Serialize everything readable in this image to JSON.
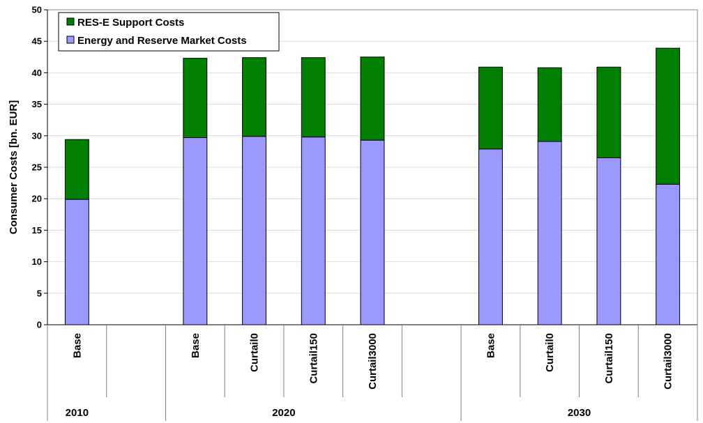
{
  "chart_data": {
    "type": "bar",
    "stacked": true,
    "ylabel": "Consumer Costs [bn. EUR]",
    "ylim": [
      0,
      50
    ],
    "yticks": [
      0,
      5,
      10,
      15,
      20,
      25,
      30,
      35,
      40,
      45,
      50
    ],
    "grid": true,
    "legend_position": "top-left",
    "groups": [
      {
        "label": "2010",
        "categories": [
          "Base",
          ""
        ]
      },
      {
        "label": "2020",
        "categories": [
          "Base",
          "Curtail0",
          "Curtail150",
          "Curtail3000",
          ""
        ]
      },
      {
        "label": "2030",
        "categories": [
          "Base",
          "Curtail0",
          "Curtail150",
          "Curtail3000"
        ]
      }
    ],
    "categories": [
      "Base",
      "",
      "Base",
      "Curtail0",
      "Curtail150",
      "Curtail3000",
      "",
      "Base",
      "Curtail0",
      "Curtail150",
      "Curtail3000"
    ],
    "series": [
      {
        "name": "Energy and Reserve Market Costs",
        "color": "#9999ff",
        "values": [
          19.9,
          null,
          29.7,
          29.9,
          29.8,
          29.3,
          null,
          27.9,
          29.1,
          26.5,
          22.3
        ]
      },
      {
        "name": "RES-E Support Costs",
        "color": "#007f00",
        "values": [
          9.5,
          null,
          12.6,
          12.5,
          12.6,
          13.2,
          null,
          13.0,
          11.7,
          14.4,
          21.6
        ]
      }
    ]
  }
}
